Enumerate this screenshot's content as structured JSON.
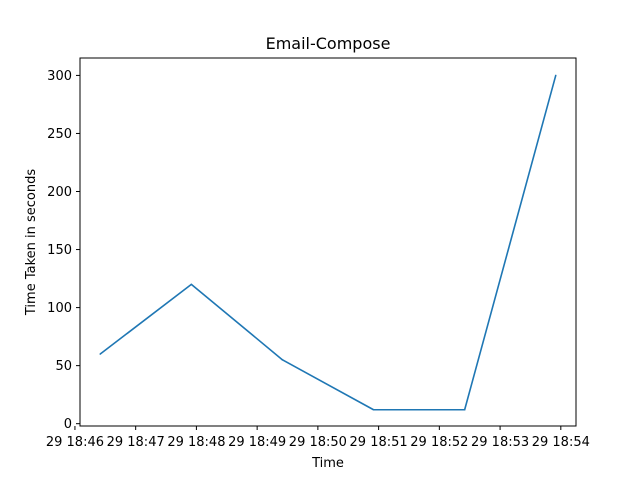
{
  "chart_data": {
    "type": "line",
    "title": "Email-Compose",
    "xlabel": "Time",
    "ylabel": "Time Taken in seconds",
    "grid": false,
    "legend": "none",
    "x": [
      "29 18:46:25",
      "29 18:47:55",
      "29 18:49:25",
      "29 18:50:55",
      "29 18:52:25",
      "29 18:53:55"
    ],
    "series": [
      {
        "values": [
          60,
          120,
          55,
          12,
          12,
          300
        ],
        "color": "#1f77b4"
      }
    ],
    "xlim": [
      "29 18:46:05",
      "29 18:54:15"
    ],
    "ylim": [
      -2,
      315
    ],
    "x_ticks": [
      "29 18:46",
      "29 18:47",
      "29 18:48",
      "29 18:49",
      "29 18:50",
      "29 18:51",
      "29 18:52",
      "29 18:53",
      "29 18:54"
    ],
    "x_tick_labels": [
      "29 18:46",
      "29 18:47",
      "29 18:48",
      "29 18:49",
      "29 18:50",
      "29 18:51",
      "29 18:52",
      "29 18:53",
      "29 18:54"
    ],
    "y_ticks": [
      0,
      50,
      100,
      150,
      200,
      250,
      300
    ]
  }
}
